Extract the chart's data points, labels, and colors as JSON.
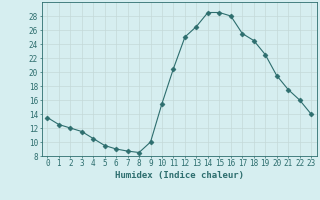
{
  "x": [
    0,
    1,
    2,
    3,
    4,
    5,
    6,
    7,
    8,
    9,
    10,
    11,
    12,
    13,
    14,
    15,
    16,
    17,
    18,
    19,
    20,
    21,
    22,
    23
  ],
  "y": [
    13.5,
    12.5,
    12.0,
    11.5,
    10.5,
    9.5,
    9.0,
    8.7,
    8.5,
    10.0,
    15.5,
    20.5,
    25.0,
    26.5,
    28.5,
    28.5,
    28.0,
    25.5,
    24.5,
    22.5,
    19.5,
    17.5,
    16.0,
    14.0
  ],
  "xlabel": "Humidex (Indice chaleur)",
  "ylabel": "",
  "ylim": [
    8,
    30
  ],
  "xlim": [
    -0.5,
    23.5
  ],
  "yticks": [
    8,
    10,
    12,
    14,
    16,
    18,
    20,
    22,
    24,
    26,
    28
  ],
  "xticks": [
    0,
    1,
    2,
    3,
    4,
    5,
    6,
    7,
    8,
    9,
    10,
    11,
    12,
    13,
    14,
    15,
    16,
    17,
    18,
    19,
    20,
    21,
    22,
    23
  ],
  "line_color": "#2d6e6e",
  "marker": "D",
  "marker_size": 2.5,
  "bg_color": "#d6eef0",
  "grid_color": "#c4d9d9",
  "label_fontsize": 6.5,
  "tick_fontsize": 5.5
}
